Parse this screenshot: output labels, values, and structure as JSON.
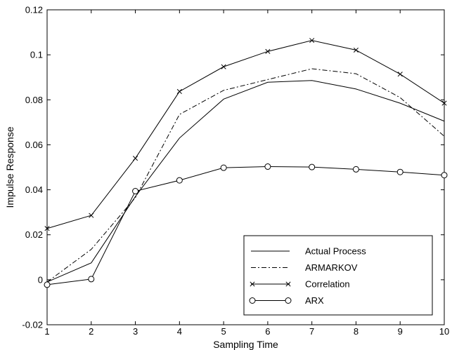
{
  "chart_data": {
    "type": "line",
    "title": "",
    "xlabel": "Sampling Time",
    "ylabel": "Impulse Response",
    "xlim": [
      1,
      10
    ],
    "ylim": [
      -0.02,
      0.12
    ],
    "x_ticks": [
      "1",
      "2",
      "3",
      "4",
      "5",
      "6",
      "7",
      "8",
      "9",
      "10"
    ],
    "y_ticks": [
      "-0.02",
      "0",
      "0.02",
      "0.04",
      "0.06",
      "0.08",
      "0.1",
      "0.12"
    ],
    "grid": false,
    "legend_position": "bottom-right",
    "x": [
      1,
      2,
      3,
      4,
      5,
      6,
      7,
      8,
      9,
      10
    ],
    "series": [
      {
        "name": "Actual Process",
        "style": "solid",
        "marker": "none",
        "values": [
          -0.001,
          0.0075,
          0.037,
          0.063,
          0.0803,
          0.0878,
          0.0886,
          0.0848,
          0.0785,
          0.0705
        ]
      },
      {
        "name": "ARMARKOV",
        "style": "dashdot",
        "marker": "none",
        "values": [
          -0.001,
          0.0135,
          0.0365,
          0.0735,
          0.0842,
          0.089,
          0.0938,
          0.0916,
          0.081,
          0.0638
        ]
      },
      {
        "name": "Correlation",
        "style": "solid",
        "marker": "x",
        "values": [
          0.0228,
          0.0286,
          0.054,
          0.0837,
          0.0947,
          0.1015,
          0.1064,
          0.1021,
          0.0914,
          0.0785
        ]
      },
      {
        "name": "ARX",
        "style": "solid",
        "marker": "circle",
        "values": [
          -0.0022,
          0.0003,
          0.0394,
          0.0442,
          0.0498,
          0.0503,
          0.0501,
          0.0491,
          0.0479,
          0.0465
        ]
      }
    ]
  }
}
